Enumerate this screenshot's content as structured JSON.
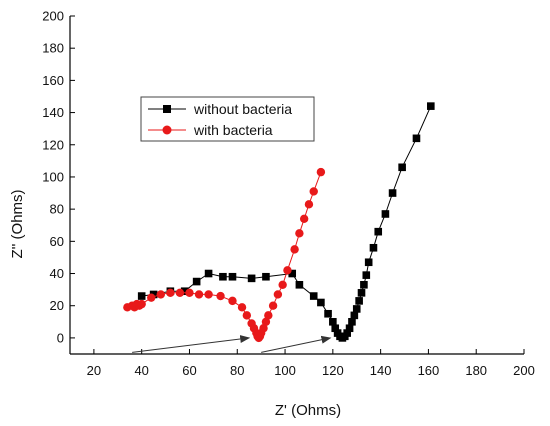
{
  "chart_data": {
    "type": "scatter",
    "xlabel": "Z' (Ohms)",
    "ylabel": "Z'' (Ohms)",
    "xlim": [
      10,
      200
    ],
    "ylim": [
      -10,
      200
    ],
    "xticks": [
      20,
      40,
      60,
      80,
      100,
      120,
      140,
      160,
      180,
      200
    ],
    "yticks": [
      0,
      20,
      40,
      60,
      80,
      100,
      120,
      140,
      160,
      180,
      200
    ],
    "grid": false,
    "legend_position": "upper-left-center",
    "series": [
      {
        "name": "without bacteria",
        "color": "#000000",
        "marker": "square",
        "points": [
          [
            40,
            26
          ],
          [
            45,
            27
          ],
          [
            52,
            29
          ],
          [
            58,
            29
          ],
          [
            63,
            35
          ],
          [
            68,
            40
          ],
          [
            74,
            38
          ],
          [
            78,
            38
          ],
          [
            86,
            37
          ],
          [
            92,
            38
          ],
          [
            103,
            40
          ],
          [
            106,
            33
          ],
          [
            112,
            26
          ],
          [
            115,
            22
          ],
          [
            118,
            15
          ],
          [
            120,
            10
          ],
          [
            121,
            6
          ],
          [
            122,
            3
          ],
          [
            123,
            1
          ],
          [
            124,
            0
          ],
          [
            125,
            1
          ],
          [
            126,
            3
          ],
          [
            127,
            6
          ],
          [
            128,
            10
          ],
          [
            129,
            14
          ],
          [
            130,
            18
          ],
          [
            131,
            23
          ],
          [
            132,
            28
          ],
          [
            133,
            33
          ],
          [
            134,
            39
          ],
          [
            135,
            47
          ],
          [
            137,
            56
          ],
          [
            139,
            66
          ],
          [
            142,
            77
          ],
          [
            145,
            90
          ],
          [
            149,
            106
          ],
          [
            155,
            124
          ],
          [
            161,
            144
          ]
        ]
      },
      {
        "name": "with bacteria",
        "color": "#e8191a",
        "marker": "circle",
        "points": [
          [
            34,
            19
          ],
          [
            36,
            20
          ],
          [
            37,
            19
          ],
          [
            38,
            21
          ],
          [
            39,
            20
          ],
          [
            40,
            21
          ],
          [
            44,
            25
          ],
          [
            48,
            27
          ],
          [
            52,
            28
          ],
          [
            56,
            28
          ],
          [
            60,
            28
          ],
          [
            64,
            27
          ],
          [
            68,
            27
          ],
          [
            73,
            26
          ],
          [
            78,
            23
          ],
          [
            82,
            19
          ],
          [
            84,
            14
          ],
          [
            86,
            9
          ],
          [
            87,
            6
          ],
          [
            88,
            3
          ],
          [
            88.5,
            1
          ],
          [
            89,
            0
          ],
          [
            89.5,
            1
          ],
          [
            90,
            3
          ],
          [
            91,
            6
          ],
          [
            92,
            10
          ],
          [
            93,
            14
          ],
          [
            95,
            20
          ],
          [
            97,
            27
          ],
          [
            99,
            33
          ],
          [
            101,
            42
          ],
          [
            104,
            55
          ],
          [
            106,
            65
          ],
          [
            108,
            74
          ],
          [
            110,
            83
          ],
          [
            112,
            91
          ],
          [
            115,
            103
          ]
        ]
      }
    ],
    "annotations": [
      {
        "type": "arrow",
        "from": [
          36,
          -9
        ],
        "to": [
          85,
          0
        ]
      },
      {
        "type": "arrow",
        "from": [
          90,
          -9
        ],
        "to": [
          119,
          0
        ]
      }
    ]
  }
}
